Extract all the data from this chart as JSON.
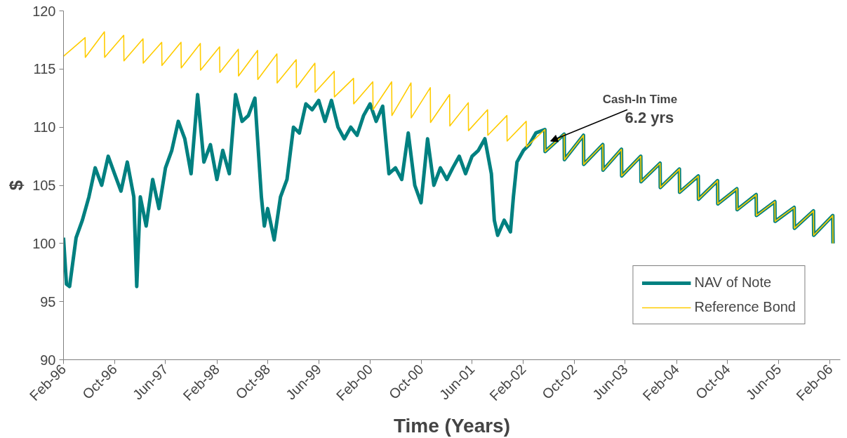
{
  "chart_data": {
    "type": "line",
    "xlabel": "Time (Years)",
    "ylabel": "$",
    "xlim": [
      "1996-02-01",
      "2006-03-22"
    ],
    "ylim": [
      90,
      120
    ],
    "yticks": [
      90,
      95,
      100,
      105,
      110,
      115,
      120
    ],
    "xticks": [
      {
        "value": "1996-02",
        "label": "Feb-96"
      },
      {
        "value": "1996-10",
        "label": "Oct-96"
      },
      {
        "value": "1997-06",
        "label": "Jun-97"
      },
      {
        "value": "1998-02",
        "label": "Feb-98"
      },
      {
        "value": "1998-10",
        "label": "Oct-98"
      },
      {
        "value": "1999-06",
        "label": "Jun-99"
      },
      {
        "value": "2000-02",
        "label": "Feb-00"
      },
      {
        "value": "2000-10",
        "label": "Oct-00"
      },
      {
        "value": "2001-06",
        "label": "Jun-01"
      },
      {
        "value": "2002-02",
        "label": "Feb-02"
      },
      {
        "value": "2002-10",
        "label": "Oct-02"
      },
      {
        "value": "2003-06",
        "label": "Jun-03"
      },
      {
        "value": "2004-02",
        "label": "Feb-04"
      },
      {
        "value": "2004-10",
        "label": "Oct-04"
      },
      {
        "value": "2005-06",
        "label": "Jun-05"
      },
      {
        "value": "2006-02",
        "label": "Feb-06"
      }
    ],
    "grid": false,
    "legend": "bottom right",
    "marker": "none",
    "line_style": "solid",
    "annotations": [
      {
        "text": "Cash-In Time",
        "x": "2002-06-10",
        "y": 108.8
      },
      "6.2 yrs"
    ],
    "series": [
      {
        "name": "NAV of Note",
        "color": "#008080",
        "x": [
          "1996-02",
          "1996-02-15",
          "1996-03",
          "1996-04",
          "1996-05",
          "1996-06",
          "1996-07",
          "1996-08",
          "1996-09",
          "1996-10",
          "1996-11",
          "1996-12",
          "1997-01",
          "1997-01-15",
          "1997-02",
          "1997-03",
          "1997-04",
          "1997-05",
          "1997-06",
          "1997-07",
          "1997-08",
          "1997-09",
          "1997-10",
          "1997-11",
          "1997-12",
          "1998-01",
          "1998-02",
          "1998-03",
          "1998-04",
          "1998-05",
          "1998-06",
          "1998-07",
          "1998-08",
          "1998-09",
          "1998-09-15",
          "1998-10",
          "1998-11",
          "1998-12",
          "1999-01",
          "1999-02",
          "1999-03",
          "1999-04",
          "1999-05",
          "1999-06",
          "1999-07",
          "1999-08",
          "1999-09",
          "1999-10",
          "1999-11",
          "1999-12",
          "2000-01",
          "2000-02",
          "2000-03",
          "2000-04",
          "2000-05",
          "2000-06",
          "2000-07",
          "2000-08",
          "2000-09",
          "2000-10",
          "2000-11",
          "2000-12",
          "2001-01",
          "2001-02",
          "2001-03",
          "2001-04",
          "2001-05",
          "2001-06",
          "2001-07",
          "2001-08",
          "2001-09",
          "2001-09-15",
          "2001-10",
          "2001-11",
          "2001-12",
          "2001-12-15",
          "2002-01",
          "2002-02",
          "2002-03",
          "2002-04",
          "2002-05-14",
          "2002-05-15",
          "2002-08-14",
          "2002-08-15",
          "2002-11-14",
          "2002-11-15",
          "2003-02-14",
          "2003-02-15",
          "2003-05-14",
          "2003-05-15",
          "2003-08-14",
          "2003-08-15",
          "2003-11-14",
          "2003-11-15",
          "2004-02-14",
          "2004-02-15",
          "2004-05-14",
          "2004-05-15",
          "2004-08-14",
          "2004-08-15",
          "2004-11-14",
          "2004-11-15",
          "2005-02-14",
          "2005-02-15",
          "2005-05-14",
          "2005-05-15",
          "2005-08-14",
          "2005-08-15",
          "2005-11-14",
          "2005-11-15",
          "2006-02-14",
          "2006-02-15"
        ],
        "values": [
          100.5,
          96.5,
          96.3,
          100.5,
          102,
          104,
          106.5,
          105,
          107.5,
          106,
          104.5,
          107,
          104,
          96.3,
          104,
          101.5,
          105.5,
          103,
          106.5,
          108,
          110.5,
          109,
          106,
          112.8,
          107,
          108.5,
          105.5,
          108,
          106,
          112.8,
          110.5,
          111,
          112.5,
          104,
          101.5,
          103,
          100.3,
          104,
          105.5,
          110,
          109.5,
          112,
          111.5,
          112.3,
          110.5,
          112.3,
          110,
          109,
          110,
          109.3,
          111,
          112,
          110.5,
          111.8,
          106,
          106.5,
          105.5,
          109.5,
          105,
          103.5,
          109,
          105,
          106.5,
          105.5,
          106.5,
          107.5,
          106,
          107.5,
          108,
          109,
          106,
          102,
          100.7,
          102,
          101,
          104,
          107,
          108,
          108.5,
          109.5,
          109.8,
          107.9,
          109.4,
          107.2,
          109.3,
          106.8,
          108.5,
          106.3,
          108.1,
          105.8,
          107.5,
          105.3,
          106.9,
          104.8,
          106.4,
          104.4,
          105.8,
          103.8,
          105.4,
          103.4,
          104.7,
          102.9,
          104.2,
          102.4,
          103.6,
          101.9,
          103.1,
          101.3,
          102.8,
          100.7,
          102.4,
          100.0
        ]
      },
      {
        "name": "Reference Bond",
        "color": "#ffcc00",
        "x": [
          "1996-02-01",
          "1996-05-14",
          "1996-05-15",
          "1996-08-14",
          "1996-08-15",
          "1996-11-14",
          "1996-11-15",
          "1997-02-14",
          "1997-02-15",
          "1997-05-14",
          "1997-05-15",
          "1997-08-14",
          "1997-08-15",
          "1997-11-14",
          "1997-11-15",
          "1998-02-14",
          "1998-02-15",
          "1998-05-14",
          "1998-05-15",
          "1998-08-14",
          "1998-08-15",
          "1998-11-14",
          "1998-11-15",
          "1999-02-14",
          "1999-02-15",
          "1999-05-14",
          "1999-05-15",
          "1999-08-14",
          "1999-08-15",
          "1999-11-14",
          "1999-11-15",
          "2000-02-14",
          "2000-02-15",
          "2000-05-14",
          "2000-05-15",
          "2000-08-14",
          "2000-08-15",
          "2000-11-14",
          "2000-11-15",
          "2001-02-14",
          "2001-02-15",
          "2001-05-14",
          "2001-05-15",
          "2001-08-14",
          "2001-08-15",
          "2001-11-14",
          "2001-11-15",
          "2002-02-14",
          "2002-02-15",
          "2002-05-14",
          "2002-05-15",
          "2002-08-14",
          "2002-08-15",
          "2002-11-14",
          "2002-11-15",
          "2003-02-14",
          "2003-02-15",
          "2003-05-14",
          "2003-05-15",
          "2003-08-14",
          "2003-08-15",
          "2003-11-14",
          "2003-11-15",
          "2004-02-14",
          "2004-02-15",
          "2004-05-14",
          "2004-05-15",
          "2004-08-14",
          "2004-08-15",
          "2004-11-14",
          "2004-11-15",
          "2005-02-14",
          "2005-02-15",
          "2005-05-14",
          "2005-05-15",
          "2005-08-14",
          "2005-08-15",
          "2005-11-14",
          "2005-11-15",
          "2006-02-14",
          "2006-02-15"
        ],
        "values": [
          116.1,
          117.7,
          116.0,
          118.2,
          116.0,
          117.9,
          115.7,
          117.6,
          115.5,
          117.3,
          115.3,
          117.3,
          115.1,
          117.2,
          114.9,
          116.9,
          114.7,
          116.7,
          114.4,
          116.6,
          114.1,
          116.3,
          113.8,
          115.8,
          113.4,
          115.5,
          113.0,
          114.8,
          112.6,
          114.2,
          112.0,
          113.9,
          111.5,
          113.9,
          111.0,
          113.8,
          110.8,
          113.4,
          110.4,
          112.8,
          110.1,
          112.1,
          109.7,
          111.5,
          109.3,
          111.0,
          108.8,
          110.5,
          108.3,
          109.8,
          107.9,
          109.4,
          107.2,
          109.3,
          106.8,
          108.5,
          106.3,
          108.1,
          105.8,
          107.5,
          105.3,
          106.9,
          104.8,
          106.4,
          104.4,
          105.8,
          103.8,
          105.4,
          103.4,
          104.7,
          102.9,
          104.2,
          102.4,
          103.6,
          101.9,
          103.1,
          101.3,
          102.8,
          100.7,
          102.4,
          100.0
        ]
      }
    ]
  }
}
